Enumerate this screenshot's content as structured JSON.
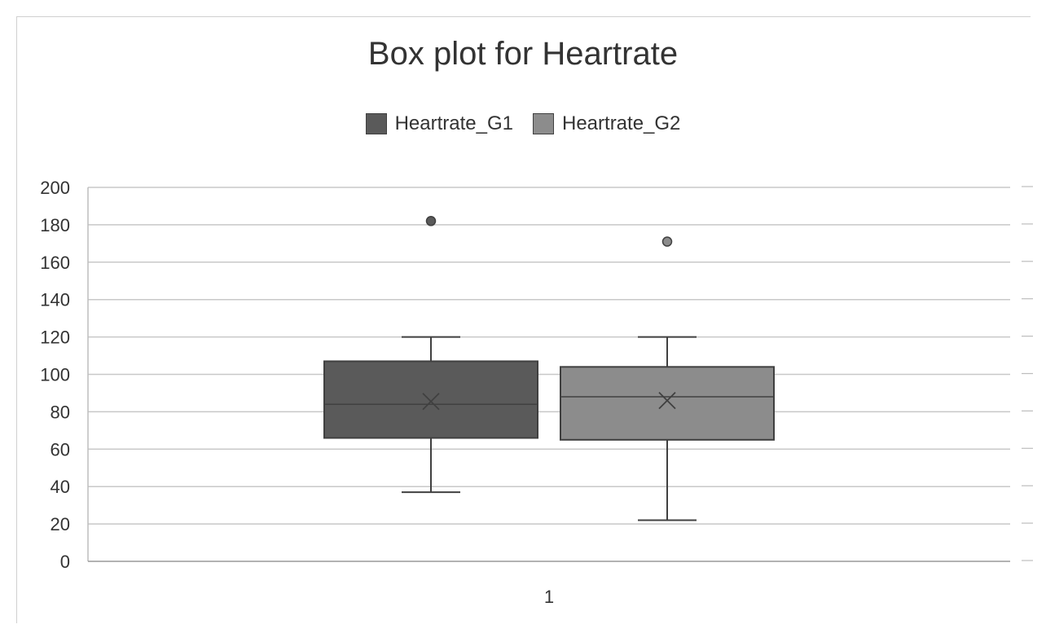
{
  "chart_data": {
    "type": "box",
    "title": "Box plot for Heartrate",
    "xlabel": "",
    "ylabel": "",
    "categories": [
      "1"
    ],
    "ylim": [
      0,
      200
    ],
    "yticks": [
      0,
      20,
      40,
      60,
      80,
      100,
      120,
      140,
      160,
      180,
      200
    ],
    "grid": true,
    "legend_position": "top",
    "series": [
      {
        "name": "Heartrate_G1",
        "color": "#5a5a5a",
        "min": 37,
        "q1": 66,
        "median": 84,
        "q3": 107,
        "max": 120,
        "mean": 85.5,
        "outliers": [
          182
        ]
      },
      {
        "name": "Heartrate_G2",
        "color": "#8c8c8c",
        "min": 22,
        "q1": 65,
        "median": 88,
        "q3": 104,
        "max": 120,
        "mean": 86,
        "outliers": [
          171
        ]
      }
    ]
  }
}
